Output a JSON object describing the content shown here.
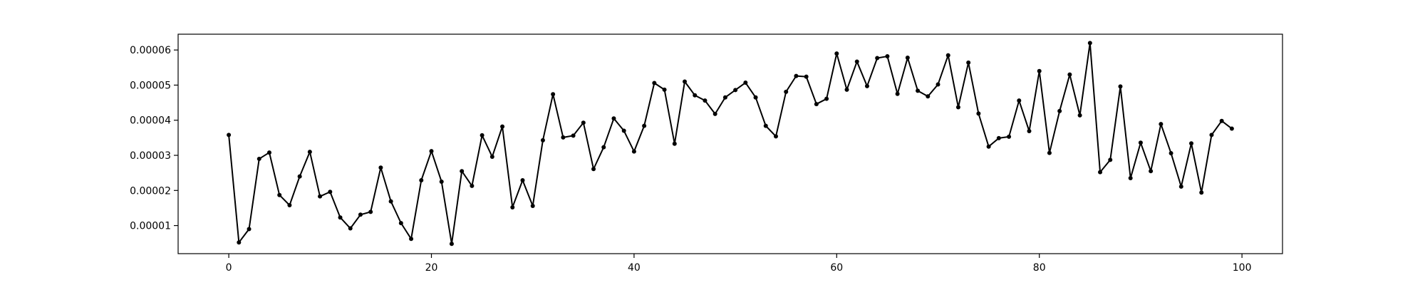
{
  "chart_data": {
    "type": "line",
    "title": "",
    "xlabel": "",
    "ylabel": "",
    "grid": false,
    "legend": "none",
    "xlim": [
      -5,
      104
    ],
    "ylim": [
      2e-06,
      6.45e-05
    ],
    "x_ticks": [
      0,
      20,
      40,
      60,
      80,
      100
    ],
    "x_tick_labels": [
      "0",
      "20",
      "40",
      "60",
      "80",
      "100"
    ],
    "y_ticks": [
      1e-05,
      2e-05,
      3e-05,
      4e-05,
      5e-05,
      6e-05
    ],
    "y_tick_labels": [
      "0.00001",
      "0.00002",
      "0.00003",
      "0.00004",
      "0.00005",
      "0.00006"
    ],
    "series": [
      {
        "color": "#000000",
        "marker": "circle",
        "x": [
          0,
          1,
          2,
          3,
          4,
          5,
          6,
          7,
          8,
          9,
          10,
          11,
          12,
          13,
          14,
          15,
          16,
          17,
          18,
          19,
          20,
          21,
          22,
          23,
          24,
          25,
          26,
          27,
          28,
          29,
          30,
          31,
          32,
          33,
          34,
          35,
          36,
          37,
          38,
          39,
          40,
          41,
          42,
          43,
          44,
          45,
          46,
          47,
          48,
          49,
          50,
          51,
          52,
          53,
          54,
          55,
          56,
          57,
          58,
          59,
          60,
          61,
          62,
          63,
          64,
          65,
          66,
          67,
          68,
          69,
          70,
          71,
          72,
          73,
          74,
          75,
          76,
          77,
          78,
          79,
          80,
          81,
          82,
          83,
          84,
          85,
          86,
          87,
          88,
          89,
          90,
          91,
          92,
          93,
          94,
          95,
          96,
          97,
          98,
          99
        ],
        "values": [
          3.58e-05,
          5.2e-06,
          9e-06,
          2.9e-05,
          3.08e-05,
          1.87e-05,
          1.58e-05,
          2.4e-05,
          3.1e-05,
          1.83e-05,
          1.96e-05,
          1.23e-05,
          9.2e-06,
          1.31e-05,
          1.39e-05,
          2.65e-05,
          1.69e-05,
          1.07e-05,
          6.2e-06,
          2.29e-05,
          3.12e-05,
          2.25e-05,
          4.8e-06,
          2.55e-05,
          2.13e-05,
          3.57e-05,
          2.96e-05,
          3.82e-05,
          1.52e-05,
          2.29e-05,
          1.56e-05,
          3.43e-05,
          4.74e-05,
          3.51e-05,
          3.56e-05,
          3.93e-05,
          2.61e-05,
          3.23e-05,
          4.05e-05,
          3.7e-05,
          3.11e-05,
          3.84e-05,
          5.06e-05,
          4.87e-05,
          3.33e-05,
          5.1e-05,
          4.71e-05,
          4.56e-05,
          4.18e-05,
          4.65e-05,
          4.86e-05,
          5.07e-05,
          4.65e-05,
          3.84e-05,
          3.54e-05,
          4.81e-05,
          5.26e-05,
          5.24e-05,
          4.46e-05,
          4.61e-05,
          5.9e-05,
          4.87e-05,
          5.67e-05,
          4.97e-05,
          5.77e-05,
          5.82e-05,
          4.75e-05,
          5.78e-05,
          4.84e-05,
          4.68e-05,
          5.02e-05,
          5.85e-05,
          4.37e-05,
          5.64e-05,
          4.19e-05,
          3.25e-05,
          3.49e-05,
          3.53e-05,
          4.56e-05,
          3.69e-05,
          5.4e-05,
          3.07e-05,
          4.26e-05,
          5.3e-05,
          4.14e-05,
          6.2e-05,
          2.52e-05,
          2.87e-05,
          4.96e-05,
          2.35e-05,
          3.36e-05,
          2.55e-05,
          3.89e-05,
          3.06e-05,
          2.11e-05,
          3.34e-05,
          1.94e-05,
          3.58e-05,
          3.98e-05,
          3.76e-05
        ]
      }
    ]
  }
}
